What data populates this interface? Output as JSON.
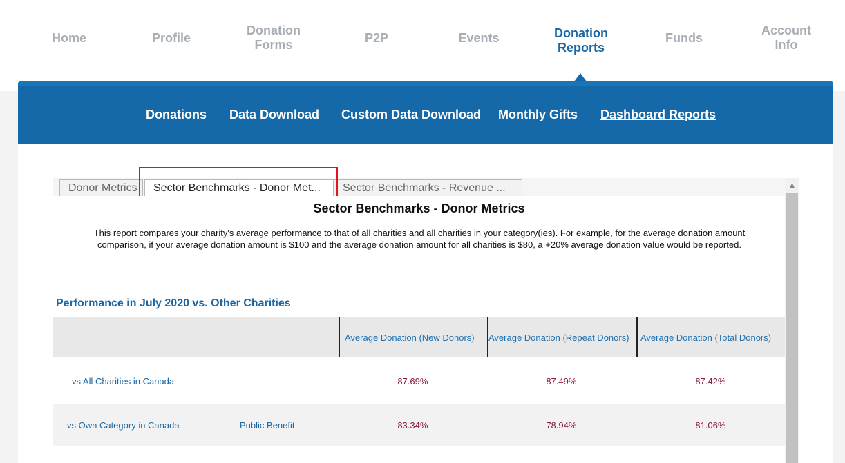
{
  "top_nav": {
    "home": "Home",
    "profile": "Profile",
    "donation_forms_1": "Donation",
    "donation_forms_2": "Forms",
    "p2p": "P2P",
    "events": "Events",
    "donation_reports_1": "Donation",
    "donation_reports_2": "Reports",
    "funds": "Funds",
    "account_info_1": "Account",
    "account_info_2": "Info"
  },
  "sub_nav": {
    "donations": "Donations",
    "data_download": "Data Download",
    "custom_data_download": "Custom Data Download",
    "monthly_gifts": "Monthly Gifts",
    "dashboard_reports": "Dashboard Reports"
  },
  "tabs": {
    "donor_metrics": "Donor Metrics",
    "sector_donor": "Sector Benchmarks - Donor Met...",
    "sector_revenue": "Sector Benchmarks - Revenue ..."
  },
  "report": {
    "title": "Sector Benchmarks - Donor Metrics",
    "desc_line1": "This report compares your charity's average performance to that of all charities and all charities in your category(ies). For example, for the average donation amount",
    "desc_line2": "comparison, if your average donation amount is $100 and the average donation amount for all charities is $80, a +20% average donation value would be reported.",
    "section_heading": "Performance in July 2020 vs. Other Charities"
  },
  "table": {
    "headers": [
      "Average Donation (New Donors)",
      "Average Donation (Repeat Donors)",
      "Average Donation (Total Donors)"
    ],
    "rows": [
      {
        "label": "vs All Charities in Canada",
        "category": "",
        "values": [
          "-87.69%",
          "-87.49%",
          "-87.42%"
        ]
      },
      {
        "label": "vs Own Category in Canada",
        "category": "Public Benefit",
        "values": [
          "-83.34%",
          "-78.94%",
          "-81.06%"
        ]
      }
    ]
  },
  "colors": {
    "primary": "#1569a8",
    "link": "#1a67a3",
    "negative_value": "#8b1a3e",
    "highlight_box": "#e0141e"
  }
}
